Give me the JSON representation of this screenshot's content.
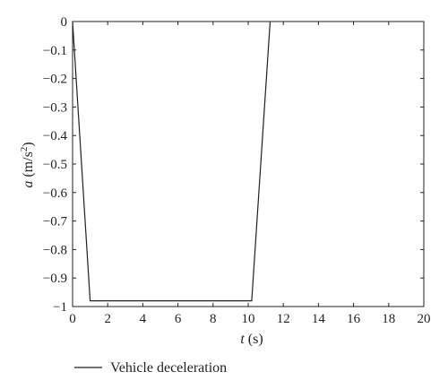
{
  "chart_data": {
    "type": "line",
    "title": "",
    "xlabel_var": "t",
    "xlabel_unit": " (s)",
    "ylabel_var": "a",
    "ylabel_unit_pre": " (m/s",
    "ylabel_unit_sup": "2",
    "ylabel_unit_post": ")",
    "xlim": [
      0,
      20
    ],
    "ylim": [
      -1,
      0
    ],
    "xticks": [
      0,
      2,
      4,
      6,
      8,
      10,
      12,
      14,
      16,
      18,
      20
    ],
    "yticks": [
      0,
      -0.1,
      -0.2,
      -0.3,
      -0.4,
      -0.5,
      -0.6,
      -0.7,
      -0.8,
      -0.9,
      -1
    ],
    "xtick_labels": [
      "0",
      "2",
      "4",
      "6",
      "8",
      "10",
      "12",
      "14",
      "16",
      "18",
      "20"
    ],
    "ytick_labels": [
      "0",
      "−0.1",
      "−0.2",
      "−0.3",
      "−0.4",
      "−0.5",
      "−0.6",
      "−0.7",
      "−0.8",
      "−0.9",
      "−1"
    ],
    "grid": false,
    "legend_position": "bottom-left",
    "series": [
      {
        "name": "Vehicle deceleration",
        "color": "#231f20",
        "x": [
          0,
          1.0,
          10.2,
          11.25
        ],
        "y": [
          0,
          -0.98,
          -0.98,
          0
        ]
      }
    ]
  }
}
